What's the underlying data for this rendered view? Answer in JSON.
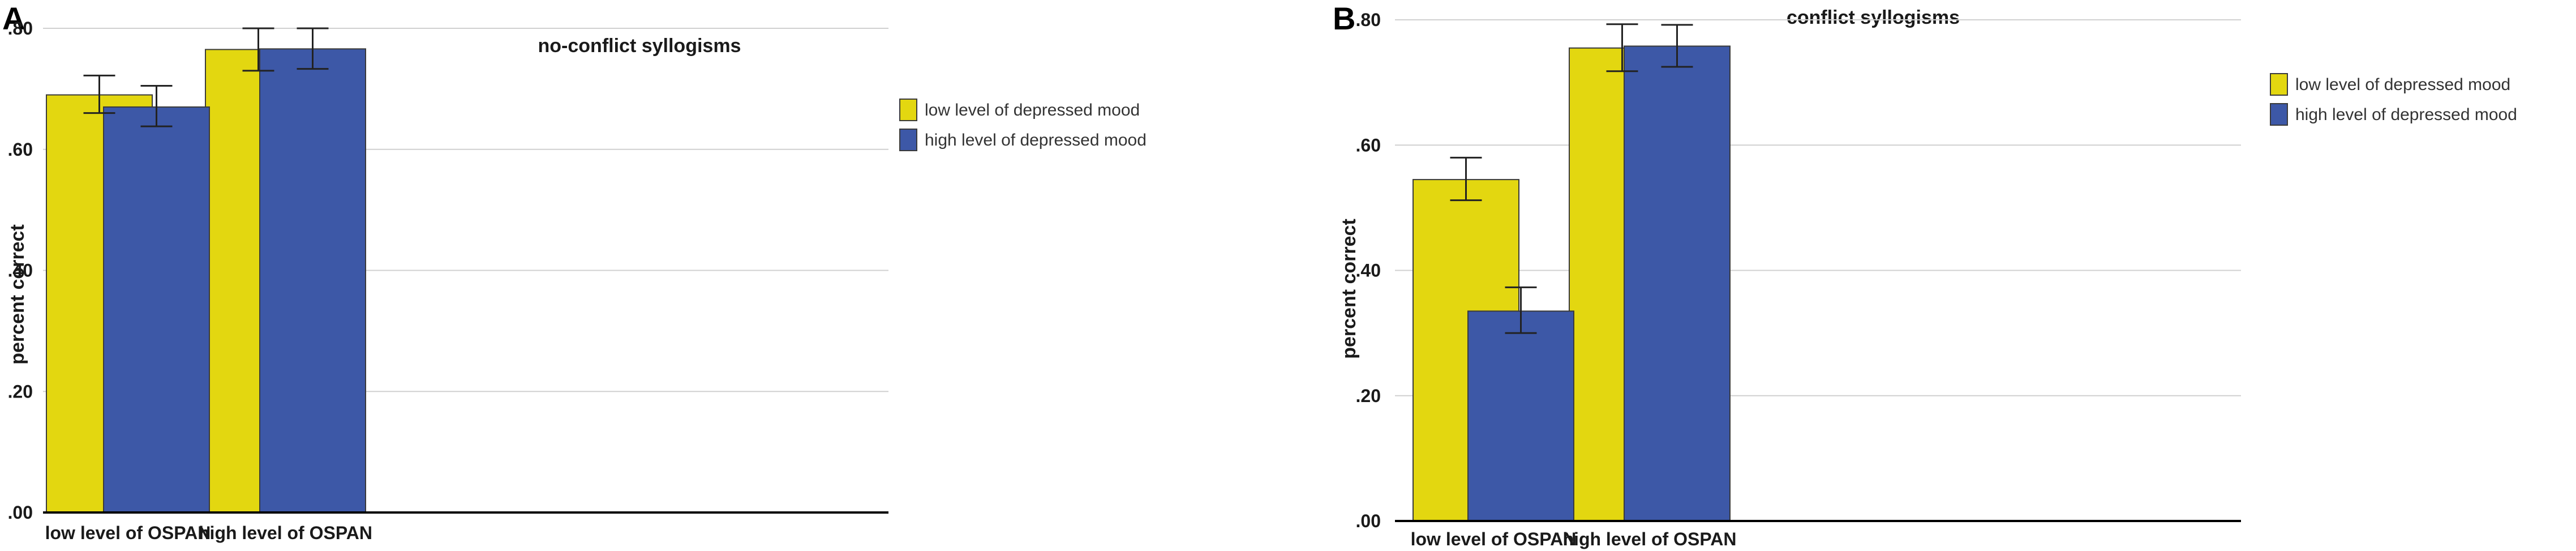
{
  "colors": {
    "low": "#e3d710",
    "high": "#3d58a7"
  },
  "chart_data": [
    {
      "panel": "A",
      "type": "bar",
      "title": "no-conflict syllogisms",
      "xlabel": "",
      "ylabel": "percent correct",
      "ylim": [
        0,
        0.8
      ],
      "yticks": [
        0,
        0.2,
        0.4,
        0.6,
        0.8
      ],
      "ytick_labels": [
        ".00",
        ".20",
        ".40",
        ".60",
        ".80"
      ],
      "grid": true,
      "legend_position": "right",
      "categories": [
        "low level of OSPAN",
        "high level of OSPAN"
      ],
      "series": [
        {
          "name": "low level of depressed mood",
          "values": [
            0.69,
            0.765
          ],
          "err_low": [
            0.66,
            0.73
          ],
          "err_high": [
            0.722,
            0.8
          ]
        },
        {
          "name": "high level of depressed mood",
          "values": [
            0.67,
            0.766
          ],
          "err_low": [
            0.638,
            0.733
          ],
          "err_high": [
            0.705,
            0.8
          ]
        }
      ]
    },
    {
      "panel": "B",
      "type": "bar",
      "title": "conflict syllogisms",
      "xlabel": "",
      "ylabel": "percent correct",
      "ylim": [
        0,
        0.8
      ],
      "yticks": [
        0,
        0.2,
        0.4,
        0.6,
        0.8
      ],
      "ytick_labels": [
        ".00",
        ".20",
        ".40",
        ".60",
        ".80"
      ],
      "grid": true,
      "legend_position": "right",
      "categories": [
        "low level of OSPAN",
        "high level of OSPAN"
      ],
      "series": [
        {
          "name": "low level of depressed mood",
          "values": [
            0.545,
            0.755
          ],
          "err_low": [
            0.512,
            0.718
          ],
          "err_high": [
            0.58,
            0.793
          ]
        },
        {
          "name": "high level of depressed mood",
          "values": [
            0.335,
            0.758
          ],
          "err_low": [
            0.3,
            0.725
          ],
          "err_high": [
            0.373,
            0.792
          ]
        }
      ]
    }
  ]
}
